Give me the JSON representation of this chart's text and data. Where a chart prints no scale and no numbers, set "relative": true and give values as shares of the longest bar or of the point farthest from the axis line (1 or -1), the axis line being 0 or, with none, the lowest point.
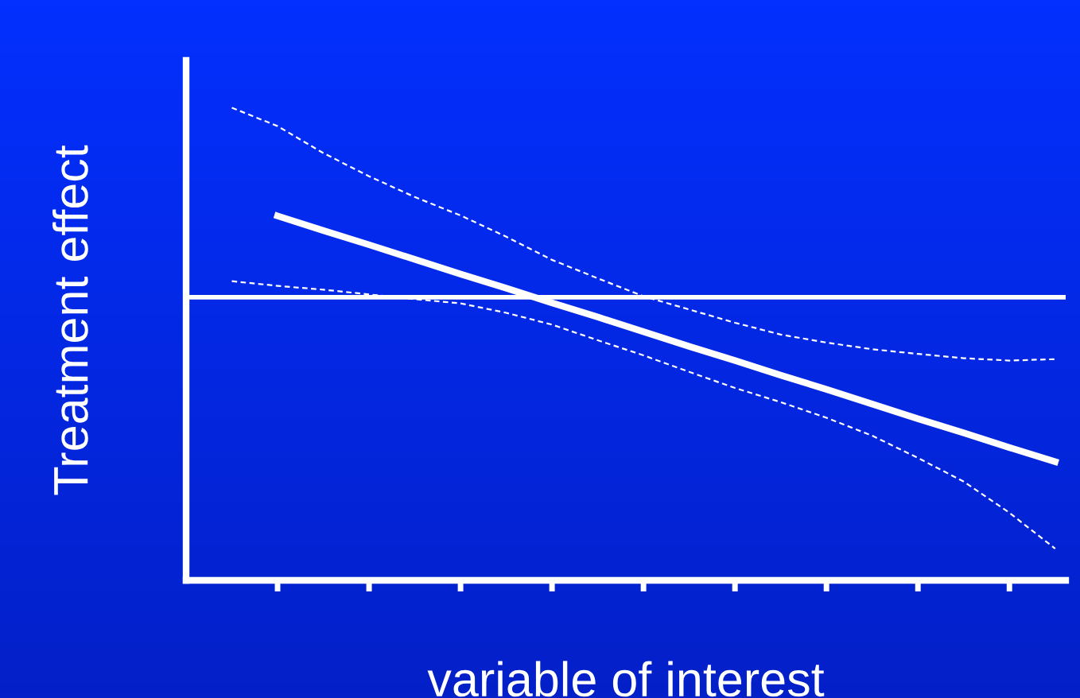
{
  "chart_data": {
    "type": "line",
    "relative": true,
    "xlabel": "variable of interest",
    "ylabel": "Treatment effect",
    "categories": [
      null,
      null,
      null,
      null,
      null,
      null,
      null,
      null,
      null,
      null,
      null,
      null,
      null,
      null,
      null,
      null,
      null,
      null,
      null
    ],
    "grid": false,
    "legend": false,
    "marker": "none",
    "ref_lines": [
      {
        "axis": "y",
        "value": 0.599,
        "color": "#ffffff",
        "line_style": "solid"
      }
    ],
    "series": [
      {
        "color": "#ffffff",
        "line_style": "solid",
        "values": [
          null,
          0.771,
          0.74,
          0.71,
          0.679,
          0.648,
          0.618,
          0.587,
          0.557,
          0.526,
          0.495,
          0.465,
          0.434,
          0.404,
          0.373,
          0.342,
          0.312,
          0.281,
          0.251
        ]
      },
      {
        "color": "#ffffff",
        "line_style": "dashed",
        "values": [
          1,
          0.961,
          0.904,
          0.855,
          0.811,
          0.772,
          0.727,
          0.678,
          0.639,
          0.601,
          0.573,
          0.545,
          0.52,
          0.503,
          0.489,
          0.479,
          0.47,
          0.465,
          0.468
        ]
      },
      {
        "color": "#ffffff",
        "line_style": "dashed",
        "values": [
          0.633,
          0.623,
          0.615,
          0.605,
          0.595,
          0.586,
          0.566,
          0.541,
          0.508,
          0.476,
          0.441,
          0.407,
          0.377,
          0.344,
          0.306,
          0.259,
          0.209,
          0.143,
          0.067
        ]
      }
    ]
  }
}
